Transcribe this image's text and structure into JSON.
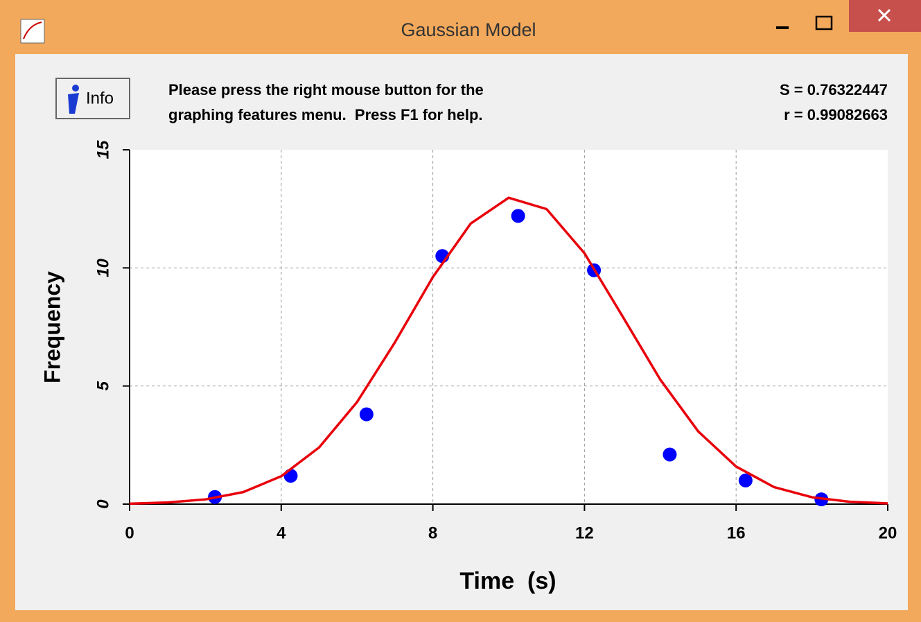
{
  "window": {
    "title": "Gaussian Model"
  },
  "toolbar": {
    "button": "Info",
    "message": [
      "Please press the right mouse button for the",
      "graphing features menu.  Press F1 for help."
    ],
    "stats": [
      "S = 0.76322447",
      "r = 0.99082663"
    ]
  },
  "chart_data": {
    "type": "scatter",
    "xlabel": "Time  (s)",
    "ylabel": "Frequency",
    "xlim": [
      0,
      20
    ],
    "xticks": [
      0,
      4,
      8,
      12,
      16,
      20
    ],
    "ylim": [
      0,
      15
    ],
    "yticks": [
      0,
      5,
      10,
      15
    ],
    "grid": true,
    "series": [
      {
        "type": "scatter",
        "color": "#0000ff",
        "x": [
          2.25,
          4.25,
          6.25,
          8.25,
          10.25,
          12.25,
          14.25,
          16.25,
          18.25
        ],
        "values": [
          0.3,
          1.2,
          3.8,
          10.5,
          12.2,
          9.9,
          2.1,
          1.0,
          0.2
        ]
      },
      {
        "type": "line",
        "color": "#e8000b",
        "x": [
          0,
          1,
          2,
          3,
          4,
          5,
          6,
          7,
          8,
          9,
          10,
          11,
          12,
          13,
          14,
          15,
          16,
          17,
          18,
          19,
          20
        ],
        "values": [
          0.02,
          0.07,
          0.2,
          0.51,
          1.18,
          2.4,
          4.32,
          6.85,
          9.61,
          11.88,
          12.97,
          12.49,
          10.62,
          7.96,
          5.27,
          3.08,
          1.59,
          0.72,
          0.29,
          0.1,
          0.03
        ]
      }
    ]
  }
}
